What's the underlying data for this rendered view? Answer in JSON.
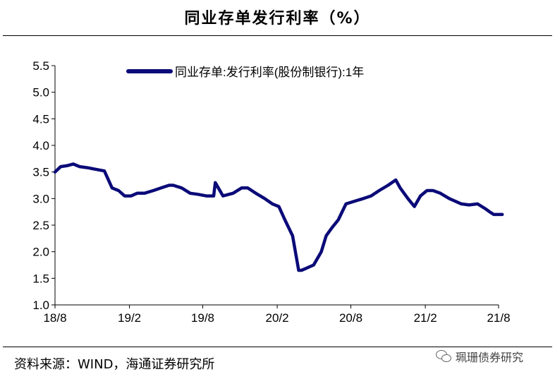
{
  "page": {
    "source": "资料来源：WIND，海通证券研究所",
    "watermark": "珮珊债券研究",
    "watermark_icon": "wechat-icon"
  },
  "chart_data": {
    "type": "line",
    "title": "同业存单发行利率（%）",
    "xlabel": "",
    "ylabel": "",
    "ylim": [
      1.0,
      5.5
    ],
    "yticks": [
      "1.0",
      "1.5",
      "2.0",
      "2.5",
      "3.0",
      "3.5",
      "4.0",
      "4.5",
      "5.0",
      "5.5"
    ],
    "xticks": [
      "18/8",
      "19/2",
      "19/8",
      "20/2",
      "20/8",
      "21/2",
      "21/8"
    ],
    "legend_position": "top-center",
    "grid": false,
    "color": "#0a0a78",
    "series": [
      {
        "name": "同业存单:发行利率(股份制银行):1年",
        "x": [
          "2018-08-01",
          "2018-08-15",
          "2018-09-01",
          "2018-09-15",
          "2018-10-01",
          "2018-10-20",
          "2018-11-10",
          "2018-12-01",
          "2018-12-20",
          "2019-01-05",
          "2019-01-20",
          "2019-02-05",
          "2019-02-20",
          "2019-03-10",
          "2019-04-01",
          "2019-04-20",
          "2019-05-10",
          "2019-05-20",
          "2019-06-10",
          "2019-07-01",
          "2019-07-20",
          "2019-08-10",
          "2019-08-28",
          "2019-09-01",
          "2019-09-20",
          "2019-10-15",
          "2019-11-05",
          "2019-11-20",
          "2019-12-10",
          "2020-01-01",
          "2020-01-20",
          "2020-02-05",
          "2020-02-20",
          "2020-03-10",
          "2020-03-25",
          "2020-04-01",
          "2020-04-10",
          "2020-05-01",
          "2020-05-20",
          "2020-06-01",
          "2020-06-15",
          "2020-07-01",
          "2020-07-20",
          "2020-08-10",
          "2020-09-01",
          "2020-09-20",
          "2020-10-10",
          "2020-11-01",
          "2020-11-20",
          "2020-12-01",
          "2020-12-20",
          "2021-01-05",
          "2021-01-20",
          "2021-02-05",
          "2021-02-20",
          "2021-03-10",
          "2021-04-01",
          "2021-05-01",
          "2021-05-20",
          "2021-06-10",
          "2021-07-01",
          "2021-07-10",
          "2021-07-20",
          "2021-08-01",
          "2021-08-10"
        ],
        "values": [
          3.5,
          3.6,
          3.62,
          3.65,
          3.6,
          3.58,
          3.55,
          3.52,
          3.2,
          3.15,
          3.05,
          3.05,
          3.1,
          3.1,
          3.15,
          3.2,
          3.25,
          3.25,
          3.2,
          3.1,
          3.08,
          3.05,
          3.05,
          3.3,
          3.05,
          3.1,
          3.2,
          3.2,
          3.1,
          3.0,
          2.9,
          2.85,
          2.6,
          2.3,
          1.65,
          1.65,
          1.68,
          1.75,
          2.0,
          2.3,
          2.45,
          2.6,
          2.9,
          2.95,
          3.0,
          3.05,
          3.15,
          3.25,
          3.35,
          3.2,
          3.0,
          2.85,
          3.05,
          3.15,
          3.15,
          3.1,
          3.0,
          2.9,
          2.88,
          2.9,
          2.8,
          2.75,
          2.7,
          2.7,
          2.7
        ]
      }
    ]
  }
}
